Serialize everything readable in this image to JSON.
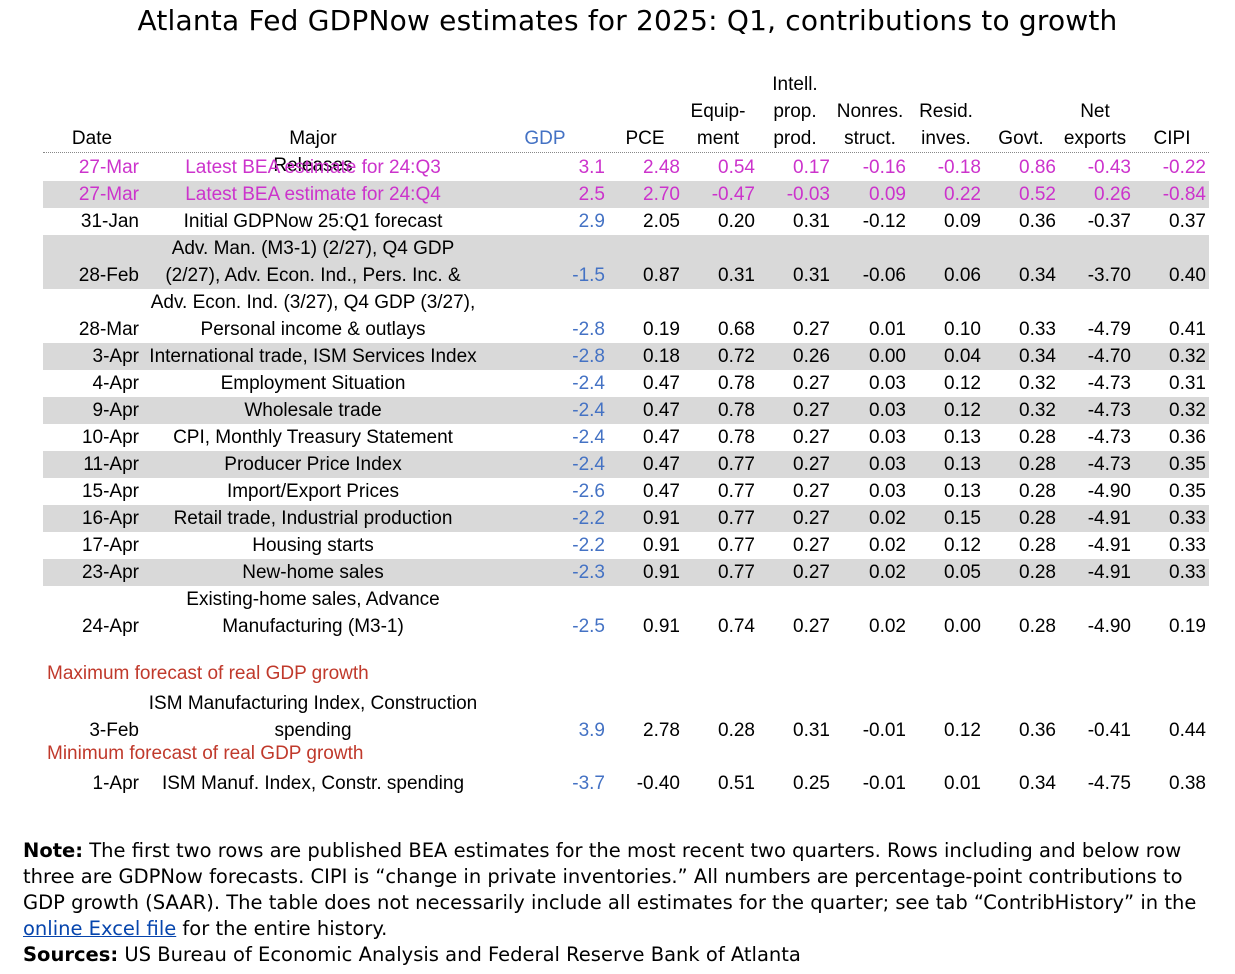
{
  "title": "Atlanta Fed GDPNow estimates for 2025: Q1, contributions to growth",
  "colors": {
    "bea": "#cc33cc",
    "gdp": "#4472c4",
    "section": "#c0392b",
    "band": "#d9d9d9"
  },
  "chart_data": {
    "type": "table",
    "columns": [
      "Date",
      "Major Releases",
      "GDP",
      "PCE",
      "Equip- ment",
      "Intell. prop. prod.",
      "Nonres. struct.",
      "Resid. inves.",
      "Govt.",
      "Net exports",
      "CIPI"
    ],
    "header_lines": [
      [
        "Date"
      ],
      [
        "Major Releases"
      ],
      [
        "GDP"
      ],
      [
        "PCE"
      ],
      [
        "Equip-",
        "ment"
      ],
      [
        "Intell.",
        "prop.",
        "prod."
      ],
      [
        "Nonres.",
        "struct."
      ],
      [
        "Resid.",
        "inves."
      ],
      [
        "Govt."
      ],
      [
        "Net",
        "exports"
      ],
      [
        "CIPI"
      ]
    ],
    "rows": [
      {
        "date": "27-Mar",
        "release": [
          "Latest BEA estimate for 24:Q3"
        ],
        "values": [
          "3.1",
          "2.48",
          "0.54",
          "0.17",
          "-0.16",
          "-0.18",
          "0.86",
          "-0.43",
          "-0.22"
        ],
        "kind": "bea"
      },
      {
        "date": "27-Mar",
        "release": [
          "Latest BEA estimate for 24:Q4"
        ],
        "values": [
          "2.5",
          "2.70",
          "-0.47",
          "-0.03",
          "0.09",
          "0.22",
          "0.52",
          "0.26",
          "-0.84"
        ],
        "kind": "bea"
      },
      {
        "date": "31-Jan",
        "release": [
          "Initial GDPNow 25:Q1 forecast"
        ],
        "values": [
          "2.9",
          "2.05",
          "0.20",
          "0.31",
          "-0.12",
          "0.09",
          "0.36",
          "-0.37",
          "0.37"
        ],
        "kind": "normal"
      },
      {
        "date": "28-Feb",
        "release": [
          "Adv. Man. (M3-1) (2/27), Q4 GDP",
          "(2/27), Adv. Econ. Ind., Pers. Inc. &"
        ],
        "values": [
          "-1.5",
          "0.87",
          "0.31",
          "0.31",
          "-0.06",
          "0.06",
          "0.34",
          "-3.70",
          "0.40"
        ],
        "kind": "normal"
      },
      {
        "date": "28-Mar",
        "release": [
          "Adv. Econ. Ind. (3/27), Q4 GDP (3/27),",
          "Personal income & outlays"
        ],
        "values": [
          "-2.8",
          "0.19",
          "0.68",
          "0.27",
          "0.01",
          "0.10",
          "0.33",
          "-4.79",
          "0.41"
        ],
        "kind": "normal"
      },
      {
        "date": "3-Apr",
        "release": [
          "International trade, ISM Services Index"
        ],
        "values": [
          "-2.8",
          "0.18",
          "0.72",
          "0.26",
          "0.00",
          "0.04",
          "0.34",
          "-4.70",
          "0.32"
        ],
        "kind": "normal"
      },
      {
        "date": "4-Apr",
        "release": [
          "Employment Situation"
        ],
        "values": [
          "-2.4",
          "0.47",
          "0.78",
          "0.27",
          "0.03",
          "0.12",
          "0.32",
          "-4.73",
          "0.31"
        ],
        "kind": "normal"
      },
      {
        "date": "9-Apr",
        "release": [
          "Wholesale trade"
        ],
        "values": [
          "-2.4",
          "0.47",
          "0.78",
          "0.27",
          "0.03",
          "0.12",
          "0.32",
          "-4.73",
          "0.32"
        ],
        "kind": "normal"
      },
      {
        "date": "10-Apr",
        "release": [
          "CPI, Monthly Treasury Statement"
        ],
        "values": [
          "-2.4",
          "0.47",
          "0.78",
          "0.27",
          "0.03",
          "0.13",
          "0.28",
          "-4.73",
          "0.36"
        ],
        "kind": "normal"
      },
      {
        "date": "11-Apr",
        "release": [
          "Producer Price Index"
        ],
        "values": [
          "-2.4",
          "0.47",
          "0.77",
          "0.27",
          "0.03",
          "0.13",
          "0.28",
          "-4.73",
          "0.35"
        ],
        "kind": "normal"
      },
      {
        "date": "15-Apr",
        "release": [
          "Import/Export Prices"
        ],
        "values": [
          "-2.6",
          "0.47",
          "0.77",
          "0.27",
          "0.03",
          "0.13",
          "0.28",
          "-4.90",
          "0.35"
        ],
        "kind": "normal"
      },
      {
        "date": "16-Apr",
        "release": [
          "Retail trade, Industrial production"
        ],
        "values": [
          "-2.2",
          "0.91",
          "0.77",
          "0.27",
          "0.02",
          "0.15",
          "0.28",
          "-4.91",
          "0.33"
        ],
        "kind": "normal"
      },
      {
        "date": "17-Apr",
        "release": [
          "Housing starts"
        ],
        "values": [
          "-2.2",
          "0.91",
          "0.77",
          "0.27",
          "0.02",
          "0.12",
          "0.28",
          "-4.91",
          "0.33"
        ],
        "kind": "normal"
      },
      {
        "date": "23-Apr",
        "release": [
          "New-home sales"
        ],
        "values": [
          "-2.3",
          "0.91",
          "0.77",
          "0.27",
          "0.02",
          "0.05",
          "0.28",
          "-4.91",
          "0.33"
        ],
        "kind": "normal"
      },
      {
        "date": "24-Apr",
        "release": [
          "Existing-home sales, Advance",
          "Manufacturing (M3-1)"
        ],
        "values": [
          "-2.5",
          "0.91",
          "0.74",
          "0.27",
          "0.02",
          "0.00",
          "0.28",
          "-4.90",
          "0.19"
        ],
        "kind": "normal"
      }
    ],
    "max_section": {
      "label": "Maximum forecast of real GDP growth",
      "row": {
        "date": "3-Feb",
        "release": [
          "ISM Manufacturing Index, Construction",
          "spending"
        ],
        "values": [
          "3.9",
          "2.78",
          "0.28",
          "0.31",
          "-0.01",
          "0.12",
          "0.36",
          "-0.41",
          "0.44"
        ]
      }
    },
    "min_section": {
      "label": "Minimum forecast of real GDP growth",
      "row": {
        "date": "1-Apr",
        "release": [
          "ISM Manuf. Index, Constr. spending"
        ],
        "values": [
          "-3.7",
          "-0.40",
          "0.51",
          "0.25",
          "-0.01",
          "0.01",
          "0.34",
          "-4.75",
          "0.38"
        ]
      }
    }
  },
  "note": {
    "note_label": "Note:",
    "note_text_1": " The first two rows are published BEA estimates for the most recent two quarters. Rows including and below row three are GDPNow forecasts. CIPI is “change in private inventories.” All numbers are percentage-point contributions to GDP growth (SAAR). The table does not necessarily include all estimates for the quarter; see tab “ContribHistory” in the ",
    "link_text": "online Excel file",
    "note_text_2": " for the entire history.",
    "sources_label": "Sources:",
    "sources_text": " US Bureau of Economic Analysis and Federal Reserve Bank of Atlanta"
  }
}
